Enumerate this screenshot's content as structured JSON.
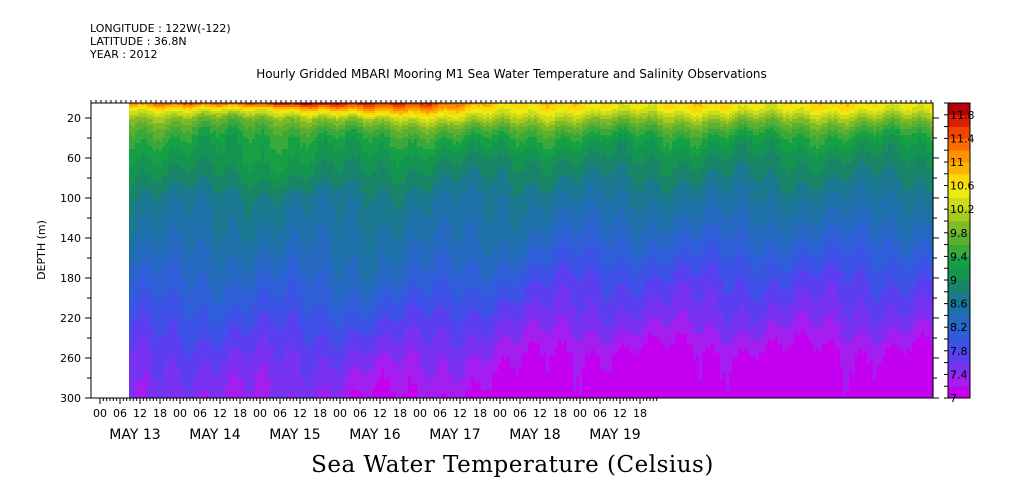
{
  "header": {
    "longitude": "LONGITUDE : 122W(-122)",
    "latitude": "LATITUDE : 36.8N",
    "year": "YEAR : 2012"
  },
  "chart_data": {
    "type": "heatmap",
    "title": "Hourly Gridded MBARI Mooring M1 Sea Water Temperature and Salinity Observations",
    "subtitle": "Sea Water Temperature (Celsius)",
    "ylabel": "DEPTH (m)",
    "ylim": [
      300,
      5
    ],
    "y_ticks": [
      20,
      60,
      100,
      140,
      180,
      220,
      260,
      300
    ],
    "x_hour_labels": [
      "00",
      "06",
      "12",
      "18",
      "00",
      "06",
      "12",
      "18",
      "00",
      "06",
      "12",
      "18",
      "00",
      "06",
      "12",
      "18",
      "00",
      "06",
      "12",
      "18",
      "00",
      "06",
      "12",
      "18",
      "00",
      "06",
      "12",
      "18"
    ],
    "x_day_labels": [
      "MAY 13",
      "MAY 14",
      "MAY 15",
      "MAY 16",
      "MAY 17",
      "MAY 18",
      "MAY 19"
    ],
    "data_start_hour": 6,
    "colorbar": {
      "levels": [
        7,
        7.2,
        7.4,
        7.6,
        7.8,
        8,
        8.2,
        8.4,
        8.6,
        8.8,
        9,
        9.2,
        9.4,
        9.6,
        9.8,
        10,
        10.2,
        10.4,
        10.6,
        10.8,
        11,
        11.2,
        11.4,
        11.6,
        11.8
      ],
      "tick_labels": [
        "7",
        "7.4",
        "7.8",
        "8.2",
        "8.6",
        "9",
        "9.4",
        "9.8",
        "10.2",
        "10.6",
        "11",
        "11.4",
        "11.8"
      ],
      "colors": [
        "#c400f0",
        "#a41ef0",
        "#7a32f2",
        "#5a3ef0",
        "#3e52e8",
        "#2e5ed8",
        "#2468c0",
        "#1e70a8",
        "#1a7890",
        "#188468",
        "#149450",
        "#16a044",
        "#3aa83a",
        "#5cb030",
        "#7eba28",
        "#a6ca20",
        "#ccdc18",
        "#eeea10",
        "#fbd808",
        "#fcb400",
        "#fc9200",
        "#fa6e00",
        "#f04400",
        "#dc1e00",
        "#b40008"
      ]
    },
    "profiles": [
      {
        "day": 0.25,
        "depth_m": [
          5,
          10,
          20,
          30,
          40,
          60,
          80,
          100,
          140,
          180,
          220,
          260,
          300
        ],
        "temp_c": [
          10.9,
          10.4,
          9.9,
          9.6,
          9.4,
          9.1,
          8.9,
          8.7,
          8.5,
          8.2,
          7.9,
          7.6,
          7.4
        ]
      },
      {
        "day": 2.4,
        "depth_m": [
          5,
          10,
          20,
          30,
          40,
          60,
          80,
          100,
          140,
          180,
          220,
          260,
          300
        ],
        "temp_c": [
          11.6,
          10.6,
          9.8,
          9.5,
          9.3,
          9.2,
          9.0,
          8.7,
          8.5,
          8.2,
          7.9,
          7.6,
          7.4
        ]
      },
      {
        "day": 3.5,
        "depth_m": [
          5,
          10,
          20,
          30,
          40,
          60,
          80,
          100,
          140,
          180,
          220,
          260,
          300
        ],
        "temp_c": [
          11.8,
          11.2,
          10.2,
          9.7,
          9.4,
          9.1,
          8.9,
          8.7,
          8.5,
          8.3,
          7.9,
          7.5,
          7.2
        ]
      },
      {
        "day": 5.2,
        "depth_m": [
          5,
          10,
          20,
          30,
          40,
          60,
          80,
          100,
          140,
          180,
          220,
          260,
          300
        ],
        "temp_c": [
          10.8,
          10.6,
          10.2,
          9.7,
          9.4,
          9.0,
          8.8,
          8.6,
          8.4,
          8.0,
          7.6,
          7.3,
          7.1
        ]
      },
      {
        "day": 6.0,
        "depth_m": [
          5,
          10,
          20,
          30,
          40,
          60,
          80,
          100,
          140,
          180,
          220,
          260,
          300
        ],
        "temp_c": [
          10.6,
          10.5,
          10.0,
          9.6,
          9.3,
          9.0,
          8.8,
          8.6,
          8.2,
          7.8,
          7.5,
          7.1,
          7.0
        ]
      }
    ]
  }
}
